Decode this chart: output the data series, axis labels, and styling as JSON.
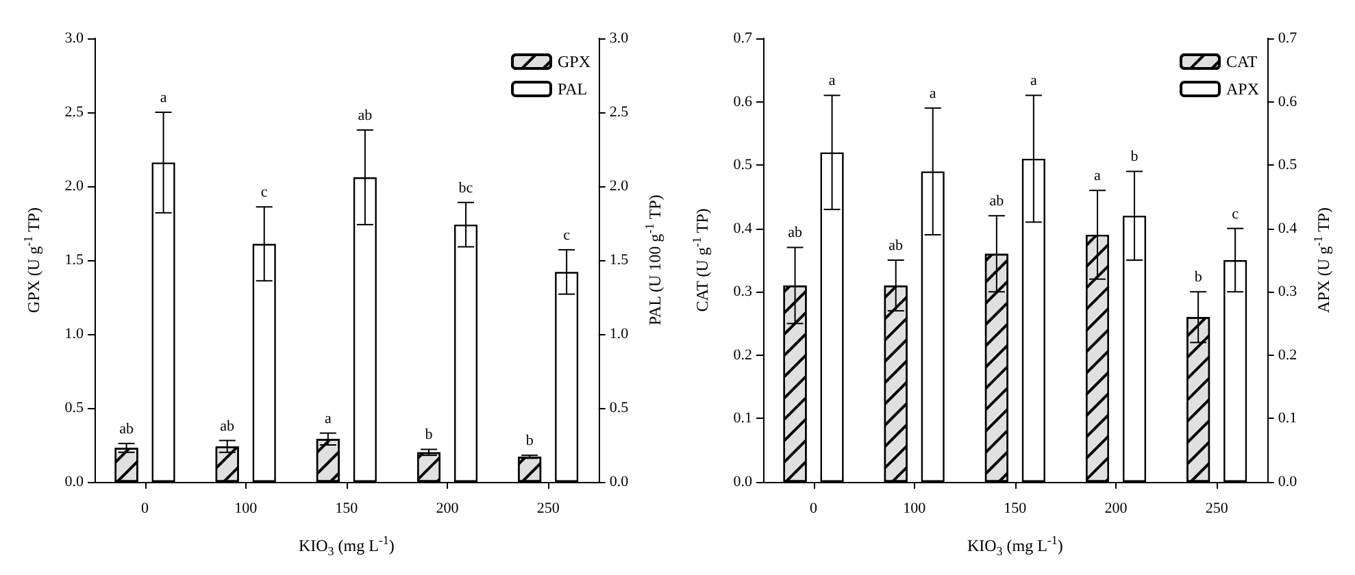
{
  "chart_data": [
    {
      "type": "bar",
      "xlabel": "KIO$_{3}$ (mg L$^{-1}$)",
      "ylabel": "GPX (U g$^{-1}$ TP)",
      "y2label": "PAL (U 100 g$^{-1}$ TP)",
      "categories": [
        "0",
        "100",
        "150",
        "200",
        "250"
      ],
      "series": [
        {
          "name": "GPX",
          "color": "#e0e0e0",
          "values": [
            0.23,
            0.24,
            0.29,
            0.2,
            0.17
          ],
          "errors": [
            0.03,
            0.04,
            0.04,
            0.02,
            0.01
          ]
        },
        {
          "name": "PAL",
          "color": "#ffffff",
          "axis": "y2",
          "values": [
            2.16,
            1.61,
            2.06,
            1.74,
            1.42
          ],
          "errors": [
            0.34,
            0.25,
            0.32,
            0.15,
            0.15
          ]
        }
      ],
      "ylim": [
        0,
        3
      ],
      "yticks": [
        {
          "value": 0,
          "label": "0.0"
        },
        0.5,
        {
          "value": 1,
          "label": "1.0"
        },
        1.5,
        {
          "value": 2,
          "label": "2.0"
        },
        2.5,
        {
          "value": 3,
          "label": "3.0"
        }
      ],
      "y2lim": [
        0,
        3
      ],
      "y2ticks": [
        {
          "value": 0,
          "label": "0.0"
        },
        0.5,
        {
          "value": 1,
          "label": "1.0"
        },
        1.5,
        {
          "value": 2,
          "label": "2.0"
        },
        2.5,
        {
          "value": 3,
          "label": "3.0"
        }
      ],
      "legend": "top right",
      "grid": false,
      "annotations": [
        "ab",
        "ab",
        "a",
        "b",
        "b",
        "a",
        "c",
        "ab",
        "bc",
        "c"
      ]
    },
    {
      "type": "bar",
      "xlabel": "KIO$_{3}$ (mg L$^{-1}$)",
      "ylabel": "CAT (U g$^{-1}$ TP)",
      "y2label": "APX (U g$^{-1}$ TP)",
      "categories": [
        "0",
        "100",
        "150",
        "200",
        "250"
      ],
      "series": [
        {
          "name": "CAT",
          "color": "#e0e0e0",
          "values": [
            0.31,
            0.31,
            0.36,
            0.39,
            0.26
          ],
          "errors": [
            0.06,
            0.04,
            0.06,
            0.07,
            0.04
          ]
        },
        {
          "name": "APX",
          "color": "#ffffff",
          "axis": "y2",
          "values": [
            0.52,
            0.49,
            0.51,
            0.42,
            0.35
          ],
          "errors": [
            0.09,
            0.1,
            0.1,
            0.07,
            0.05
          ]
        }
      ],
      "ylim": [
        0,
        0.7
      ],
      "yticks": [
        {
          "value": 0,
          "label": "0.0"
        },
        0.1,
        0.2,
        0.3,
        0.4,
        0.5,
        0.6,
        0.7
      ],
      "y2lim": [
        0,
        0.7
      ],
      "y2ticks": [
        {
          "value": 0,
          "label": "0.0"
        },
        0.1,
        0.2,
        0.3,
        0.4,
        0.5,
        0.6,
        0.7
      ],
      "legend": "top right",
      "grid": false,
      "annotations": [
        "ab",
        "ab",
        "ab",
        "a",
        "b",
        "a",
        "a",
        "a",
        "b",
        "c"
      ]
    }
  ]
}
